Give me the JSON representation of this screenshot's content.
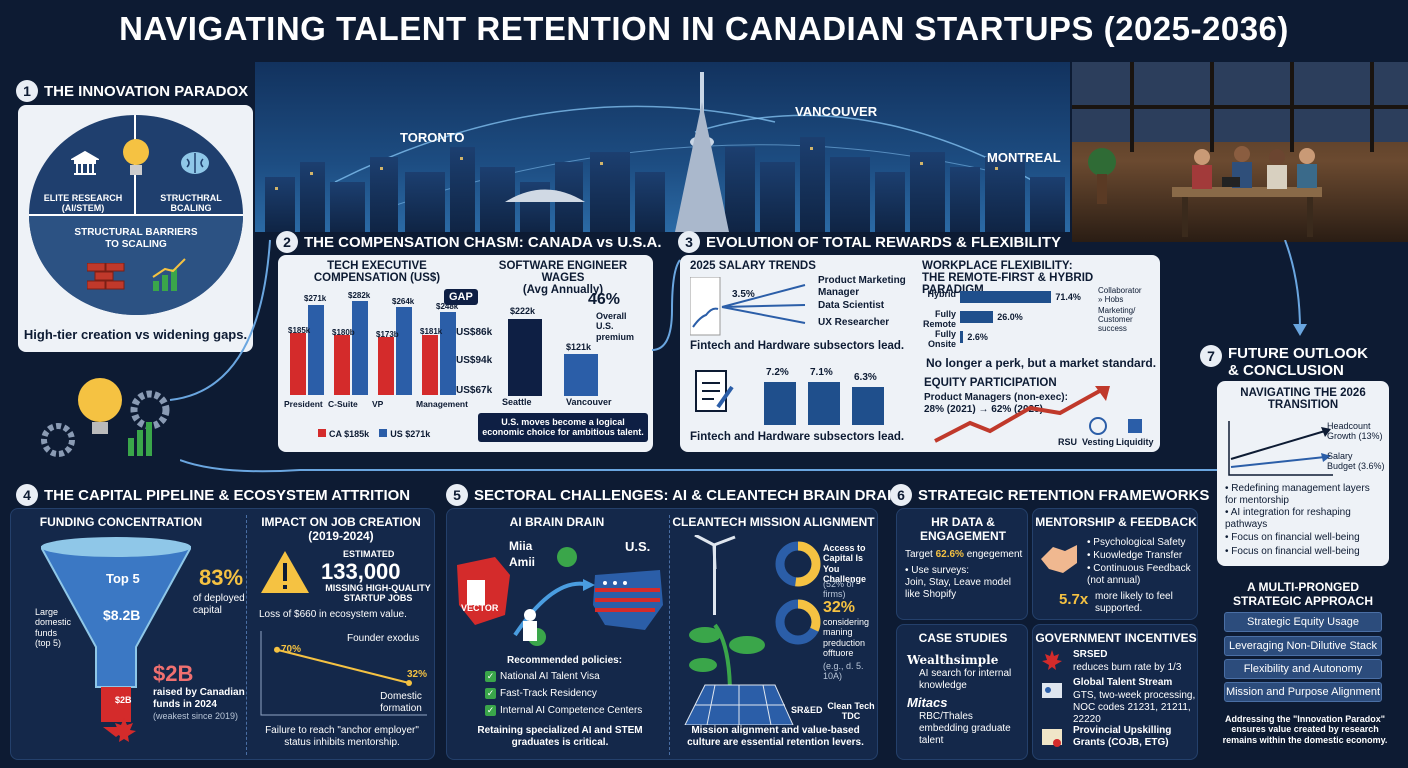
{
  "title": "NAVIGATING TALENT RETENTION IN CANADIAN STARTUPS (2025-2036)",
  "hero": {
    "toronto": "TORONTO",
    "vancouver": "VANCOUVER",
    "montreal": "MONTREAL"
  },
  "s1": {
    "num": "1",
    "title": "THE INNOVATION PARADOX",
    "elite": "ELITE RESEARCH\n(AI/STEM)",
    "structural": "STRUCTHRAL\nBCALING",
    "barriers": "STRUCTURAL BARRIERS\nTO SCALING",
    "caption": "High-tier creation vs widening gaps."
  },
  "s2": {
    "num": "2",
    "title": "THE COMPENSATION CHASM: CANADA vs U.S.A.",
    "exec_title": "TECH EXECUTIVE\nCOMPENSATION (US$)",
    "gap": "GAP",
    "groups": [
      {
        "label": "President",
        "ca": "$185k",
        "us": "$271k",
        "ca_v": 185,
        "us_v": 271
      },
      {
        "label": "C-Suite",
        "ca": "$180b",
        "us": "$282k",
        "ca_v": 180,
        "us_v": 282
      },
      {
        "label": "VP",
        "ca": "$173b",
        "us": "$264k",
        "ca_v": 173,
        "us_v": 264
      },
      {
        "label": "Management",
        "ca": "$181k",
        "us": "$248k",
        "ca_v": 181,
        "us_v": 248
      }
    ],
    "gaps": [
      "US$86k",
      "US$94k",
      "US$67k"
    ],
    "legend_ca": "CA $185k",
    "legend_us": "US $271k",
    "swe_title": "SOFTWARE ENGINEER WAGES\n(Avg Annually)",
    "seattle": "$222k",
    "vancouver": "$121k",
    "seattle_v": 222,
    "vancouver_v": 121,
    "seattle_label": "Seattle",
    "vancouver_label": "Vancouver",
    "premium": "46%",
    "premium_text": "Overall\nU.S. premium",
    "note": "U.S. moves become a logical\neconomic choice for ambitious talent."
  },
  "s3": {
    "num": "3",
    "title": "EVOLUTION OF TOTAL REWARDS & FLEXIBILITY",
    "salary_title": "2025 SALARY TRENDS",
    "trend_pct": "3.5%",
    "roles": [
      "Product Marketing\nManager",
      "Data Scientist",
      "UX Researcher"
    ],
    "lead1": "Fintech and Hardware subsectors lead.",
    "bars": [
      {
        "label": "7.2%",
        "v": 7.2
      },
      {
        "label": "7.1%",
        "v": 7.1
      },
      {
        "label": "6.3%",
        "v": 6.3
      }
    ],
    "lead2": "Fintech and Hardware subsectors lead.",
    "flex_title": "WORKPLACE FLEXIBILITY:\nTHE REMOTE-FIRST & HYBRID PARADIGM",
    "flex": [
      {
        "label": "Hybrid",
        "pct": "71.4%",
        "v": 71.4,
        "note": "Collaborator\n» Hobs"
      },
      {
        "label": "Fully\nRemote",
        "pct": "26.0%",
        "v": 26.0,
        "note": "Marketing/\nCustomer success"
      },
      {
        "label": "Fully\nOnsite",
        "pct": "2.6%",
        "v": 2.6,
        "note": ""
      }
    ],
    "flex_caption": "No longer a perk, but a market standard.",
    "equity_title": "EQUITY PARTICIPATION",
    "equity_text": "Product Managers (non-exec):\n28% (2021) → 62% (2025)",
    "rsu": "RSU",
    "vesting": "Vesting",
    "liquidity": "Liquidity"
  },
  "s4": {
    "num": "4",
    "title": "THE CAPITAL PIPELINE & ECOSYSTEM ATTRITION",
    "funding_title": "FUNDING CONCENTRATION",
    "top5": "Top 5",
    "amount": "$8.2B",
    "large": "Large\ndomestic\nfunds\n(top 5)",
    "pct": "83%",
    "pct_text": "of deployed\ncapital",
    "two_b_small": "$2B",
    "two_b": "$2B",
    "raised": "raised by Canadian\nfunds in 2024",
    "weakest": "(weakest since 2019)",
    "impact_title": "IMPACT ON JOB CREATION\n(2019-2024)",
    "estimated": "ESTIMATED",
    "jobs": "133,000",
    "jobs_text": "MISSING HIGH-QUALITY\nSTARTUP JOBS",
    "loss": "Loss of $660 in ecosystem value.",
    "exodus": "Founder exodus",
    "start": "70%",
    "end": "32%",
    "start_v": 70,
    "end_v": 32,
    "domestic": "Domestic\nformation",
    "failure": "Failure to reach \"anchor employer\"\nstatus inhibits mentorship."
  },
  "s5": {
    "num": "5",
    "title": "SECTORAL CHALLENGES: AI & CLEANTECH BRAIN DRAIN",
    "ai_title": "AI BRAIN DRAIN",
    "mila": "Miia",
    "amii": "Amii",
    "vector": "VECTOR",
    "us": "U.S.",
    "policies_title": "Recommended policies:",
    "policies": [
      "National AI Talent Visa",
      "Fast-Track Residency",
      "Internal AI Competence Centers"
    ],
    "ai_caption": "Retaining specialized AI and STEM\ngraduates is critical.",
    "clean_title": "CLEANTECH MISSION ALIGNMENT",
    "access": "Access to\nCapital Is\nYou Challenge",
    "access_sub": "(52% of firms)",
    "access_v": 52,
    "pct32": "32%",
    "pct32_v": 32,
    "considering": "considering\nmaning\npreduction\nofftuore",
    "considering_sub": "(e.g., d. 5. 10A)",
    "sred": "SR&ED",
    "cleantech_tdc": "Clean Tech\nTDC",
    "clean_caption": "Mission alignment and value-based\nculture are essential retention levers."
  },
  "s6": {
    "num": "6",
    "title": "STRATEGIC RETENTION FRAMEWORKS",
    "hr_title": "HR DATA &\nENGAGEMENT",
    "target": "Target ",
    "target_pct": "62.6%",
    "target_tail": " engegement",
    "surveys": "• Use surveys:\n  Join, Stay, Leave model\n  like Shopify",
    "mentor_title": "MENTORSHIP & FEEDBACK",
    "mentor_items": [
      "• Psychological Safety",
      "• Kuowledge Transfer",
      "• Continuous Feedback\n  (not annual)"
    ],
    "mult": "5.7x",
    "mult_text": "more likely to feel\nsupported.",
    "case_title": "CASE STUDIES",
    "ws_name": "Wealthsimple",
    "ws_text": "AI search for internal\nknowledge",
    "mitacs_name": "Mitacs",
    "mitacs_text": "RBC/Thales\nembedding graduate\ntalent",
    "gov_title": "GOVERNMENT INCENTIVES",
    "gov": [
      {
        "name": "SRSED",
        "text": "reduces burn rate by 1/3"
      },
      {
        "name": "Global Talent Stream",
        "text": "GTS, two-week processing,\nNOC codes 21231, 21211,\n22220"
      },
      {
        "name": "Provincial Upskilling\nGrants (COJB, ETG)",
        "text": ""
      }
    ]
  },
  "s7": {
    "num": "7",
    "title": "FUTURE OUTLOOK\n& CONCLUSION",
    "nav_title": "NAVIGATING THE 2026\nTRANSITION",
    "headcount": "Headcount\nGrowth (13%)",
    "salary": "Salary\nBudget (3.6%)",
    "items": [
      "• Redefining management layers\n  for mentorship",
      "• AI integration for reshaping\n  pathways",
      "• Focus on financial well-being",
      "• Focus on financial well-being"
    ],
    "multi_title": "A MULTI-PRONGED\nSTRATEGIC APPROACH",
    "pills": [
      "Strategic Equity Usage",
      "Leveraging Non-Dilutive Stack",
      "Flexibility and Autonomy",
      "Mission and Purpose Alignment"
    ],
    "conclusion": "Addressing the \"Innovation Paradox\"\nensures value created by research\nremains within the domestic economy."
  },
  "colors": {
    "canada_red": "#d42b2b",
    "us_blue": "#2b5ea8",
    "background": "#0d1b33",
    "accent": "#f5c242"
  }
}
